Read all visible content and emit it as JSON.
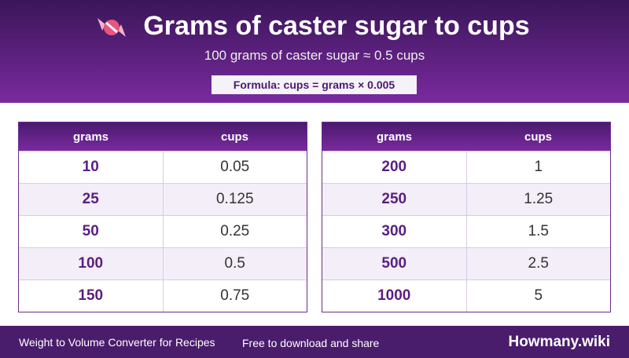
{
  "header": {
    "title": "Grams of caster sugar to cups",
    "subtitle": "100 grams of caster sugar ≈ 0.5 cups",
    "formula": "Formula: cups = grams × 0.005"
  },
  "tables": [
    {
      "columns": [
        "grams",
        "cups"
      ],
      "rows": [
        [
          10,
          0.05
        ],
        [
          25,
          0.125
        ],
        [
          50,
          0.25
        ],
        [
          100,
          0.5
        ],
        [
          150,
          0.75
        ]
      ]
    },
    {
      "columns": [
        "grams",
        "cups"
      ],
      "rows": [
        [
          200,
          1
        ],
        [
          250,
          1.25
        ],
        [
          300,
          1.5
        ],
        [
          500,
          2.5
        ],
        [
          1000,
          5
        ]
      ]
    }
  ],
  "footer": {
    "left": "Weight to Volume Converter for Recipes",
    "middle": "Free to download and share",
    "brand": "Howmany.wiki"
  }
}
